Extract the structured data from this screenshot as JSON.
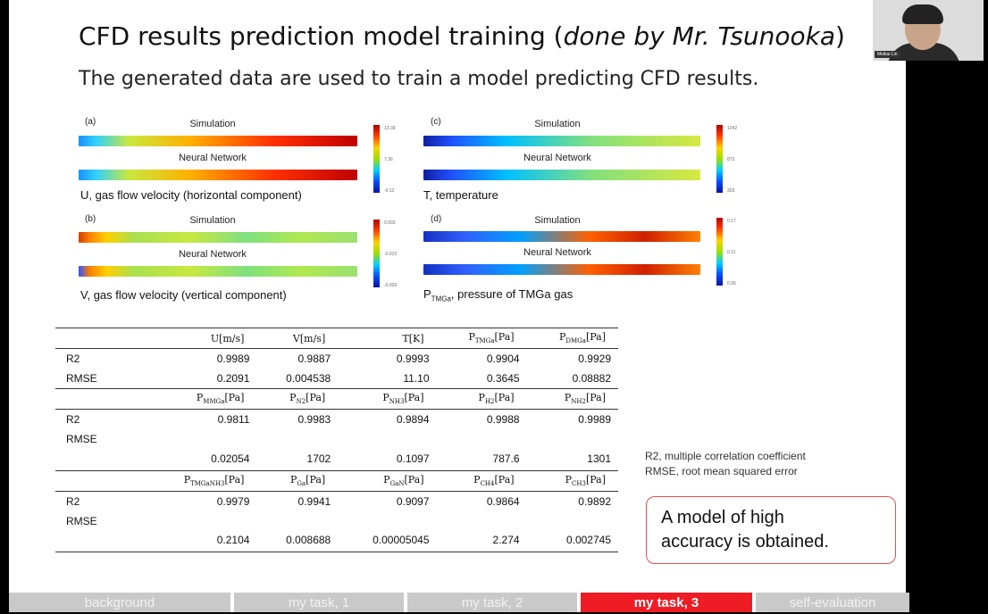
{
  "slide": {
    "title_main": "CFD results prediction model training (",
    "title_italic": "done by Mr. Tsunooka",
    "title_end": ")",
    "subtitle": "The generated data are used to train a model predicting CFD results."
  },
  "panels": [
    {
      "tag": "(a)",
      "sim_label": "Simulation",
      "nn_label": "Neural Network",
      "caption": "U, gas flow velocity (horizontal component)",
      "ticks": [
        "13.39",
        "7.36",
        "-0.12"
      ]
    },
    {
      "tag": "(b)",
      "sim_label": "Simulation",
      "nn_label": "Neural Network",
      "caption": "V, gas flow velocity (vertical component)",
      "ticks": [
        "0.003",
        "-0.013",
        "-0.029"
      ]
    },
    {
      "tag": "(c)",
      "sim_label": "Simulation",
      "nn_label": "Neural Network",
      "caption": "T, temperature",
      "ticks": [
        "1242",
        "873",
        "323"
      ]
    },
    {
      "tag": "(d)",
      "sim_label": "Simulation",
      "nn_label": "Neural Network",
      "caption_sym": "P",
      "caption_sub": "TMGa",
      "caption_rest": ", pressure of TMGa gas",
      "ticks": [
        "0.17",
        "0.11",
        "0.06"
      ]
    }
  ],
  "table": {
    "groups": [
      {
        "headers": [
          {
            "base": "U[m/s]",
            "sub": ""
          },
          {
            "base": "V[m/s]",
            "sub": ""
          },
          {
            "base": "T[K]",
            "sub": ""
          },
          {
            "base": "P",
            "sub": "TMGa",
            "unit": "[Pa]"
          },
          {
            "base": "P",
            "sub": "DMGa",
            "unit": "[Pa]"
          }
        ],
        "rows": [
          {
            "label": "R2",
            "values": [
              "0.9989",
              "0.9887",
              "0.9993",
              "0.9904",
              "0.9929"
            ]
          },
          {
            "label": "RMSE",
            "values": [
              "0.2091",
              "0.004538",
              "11.10",
              "0.3645",
              "0.08882"
            ]
          }
        ]
      },
      {
        "headers": [
          {
            "base": "P",
            "sub": "MMGa",
            "unit": "[Pa]"
          },
          {
            "base": "P",
            "sub": "N2",
            "unit": "[Pa]"
          },
          {
            "base": "P",
            "sub": "NH3",
            "unit": "[Pa]"
          },
          {
            "base": "P",
            "sub": "H2",
            "unit": "[Pa]"
          },
          {
            "base": "P",
            "sub": "NH2",
            "unit": "[Pa]"
          }
        ],
        "rows": [
          {
            "label": "R2",
            "values": [
              "0.9811",
              "0.9983",
              "0.9894",
              "0.9988",
              "0.9989"
            ]
          },
          {
            "label": "RMSE",
            "values": [
              "0.02054",
              "1702",
              "0.1097",
              "787.6",
              "1301"
            ]
          }
        ]
      },
      {
        "headers": [
          {
            "base": "P",
            "sub": "TMGaNH3",
            "unit": "[Pa]"
          },
          {
            "base": "P",
            "sub": "Ga",
            "unit": "[Pa]"
          },
          {
            "base": "P",
            "sub": "GaN",
            "unit": "[Pa]"
          },
          {
            "base": "P",
            "sub": "CH4",
            "unit": "[Pa]"
          },
          {
            "base": "P",
            "sub": "CH3",
            "unit": "[Pa]"
          }
        ],
        "rows": [
          {
            "label": "R2",
            "values": [
              "0.9979",
              "0.9941",
              "0.9097",
              "0.9864",
              "0.9892"
            ]
          },
          {
            "label": "RMSE",
            "values": [
              "0.2104",
              "0.008688",
              "0.00005045",
              "2.274",
              "0.002745"
            ]
          }
        ]
      }
    ]
  },
  "notes": {
    "line1": "R2, multiple correlation coefficient",
    "line2": "RMSE, root mean squared error"
  },
  "callout": {
    "line1": "A model of high",
    "line2": "accuracy is obtained."
  },
  "nav": {
    "tabs": [
      {
        "label": "background",
        "active": false
      },
      {
        "label": "my task, 1",
        "active": false
      },
      {
        "label": "my task, 2",
        "active": false
      },
      {
        "label": "my task, 3",
        "active": true
      },
      {
        "label": "self-evaluation",
        "active": false
      }
    ]
  },
  "webcam": {
    "name": "Meikai Lin"
  },
  "colors": {
    "accent": "#ee1c24",
    "nav_inactive": "#c9c9c9",
    "callout_border": "#e05050"
  }
}
